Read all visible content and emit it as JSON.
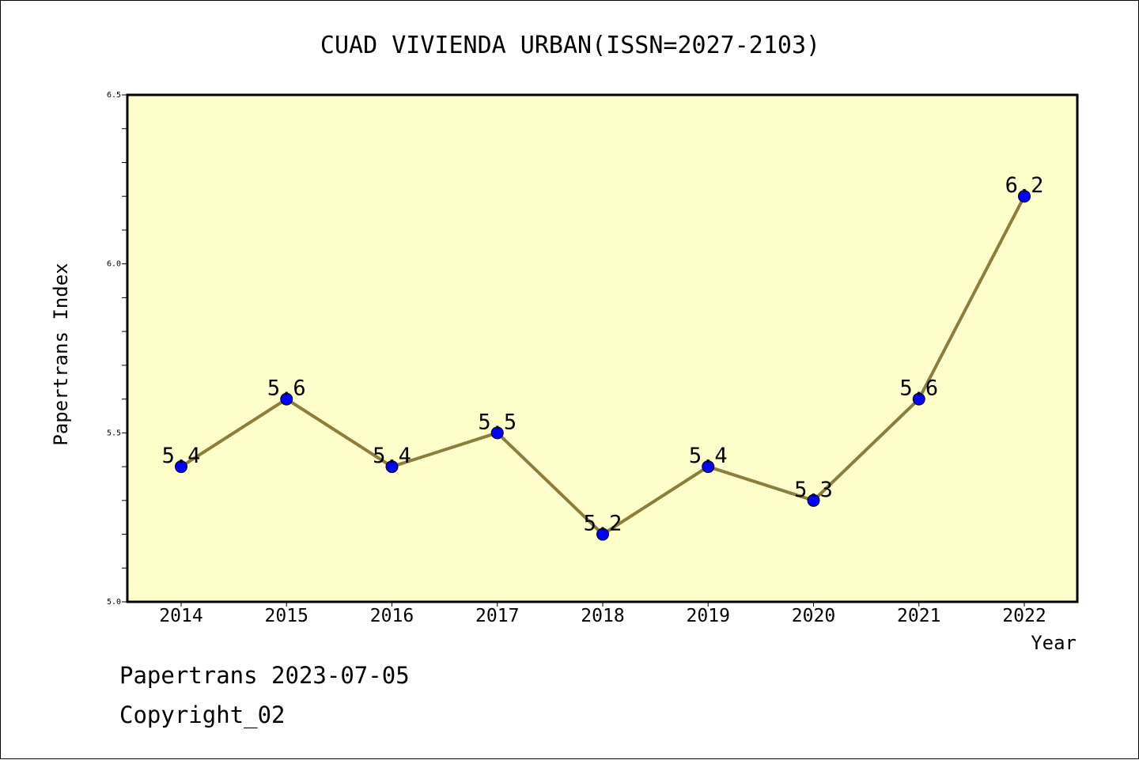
{
  "chart_data": {
    "type": "line",
    "title": "CUAD VIVIENDA URBAN(ISSN=2027-2103)",
    "xlabel": "Year",
    "ylabel": "Papertrans Index",
    "categories": [
      "2014",
      "2015",
      "2016",
      "2017",
      "2018",
      "2019",
      "2020",
      "2021",
      "2022"
    ],
    "series": [
      {
        "values": [
          5.4,
          5.6,
          5.4,
          5.5,
          5.2,
          5.4,
          5.3,
          5.6,
          6.2
        ]
      }
    ],
    "data_labels": [
      "5.4",
      "5.6",
      "5.4",
      "5.5",
      "5.2",
      "5.4",
      "5.3",
      "5.6",
      "6.2"
    ],
    "ylim": [
      5.0,
      6.5
    ],
    "yticks": [
      "5.0",
      "5.5",
      "6.0",
      "6.5"
    ],
    "grid": false,
    "colors": {
      "plot_background": "#ffffcc",
      "line": "#8b7d3a",
      "marker": "#0000ff"
    }
  },
  "footer": {
    "line1": "Papertrans 2023-07-05",
    "line2": "Copyright_02"
  }
}
